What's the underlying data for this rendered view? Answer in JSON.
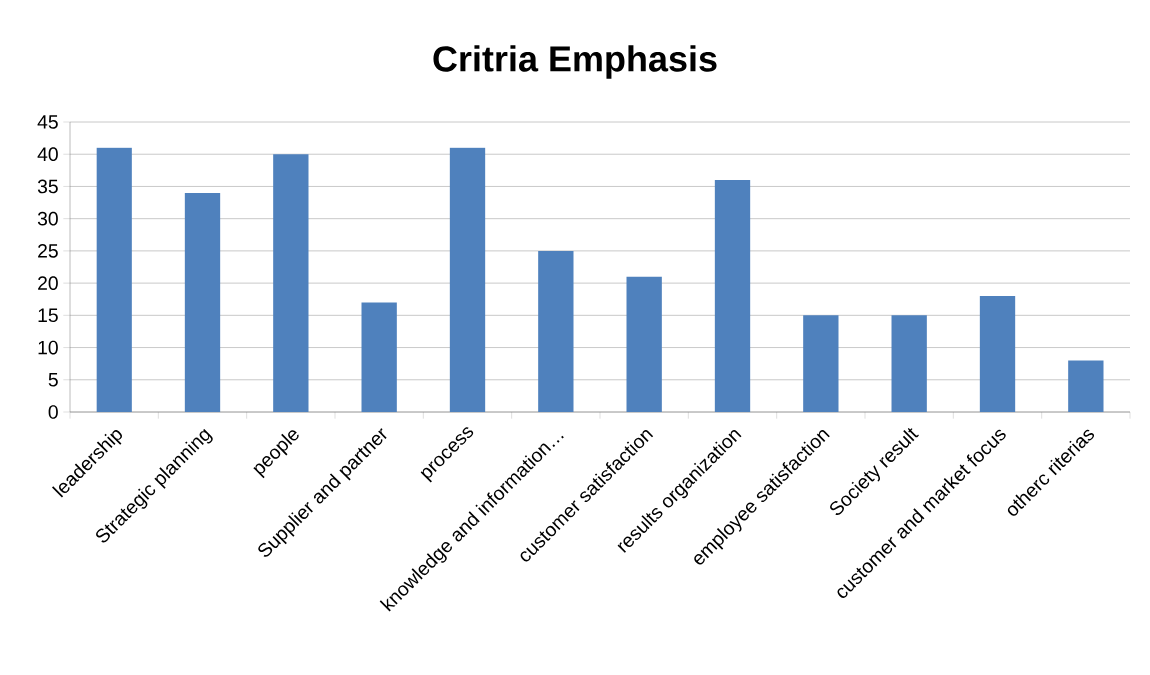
{
  "chart_data": {
    "type": "bar",
    "title": "Critria Emphasis",
    "categories": [
      "leadership",
      "Strategic planning",
      "people",
      "Supplier and partner",
      "process",
      "knowledge and information…",
      "customer satisfaction",
      "results organization",
      "employee satisfaction",
      "Society result",
      "customer and market focus",
      "otherc riterias"
    ],
    "values": [
      41,
      34,
      40,
      17,
      41,
      25,
      21,
      36,
      15,
      15,
      18,
      8
    ],
    "color": "#4f81bd",
    "ylim": [
      0,
      45
    ],
    "yticks": [
      0,
      5,
      10,
      15,
      20,
      25,
      30,
      35,
      40,
      45
    ],
    "grid": "y"
  }
}
